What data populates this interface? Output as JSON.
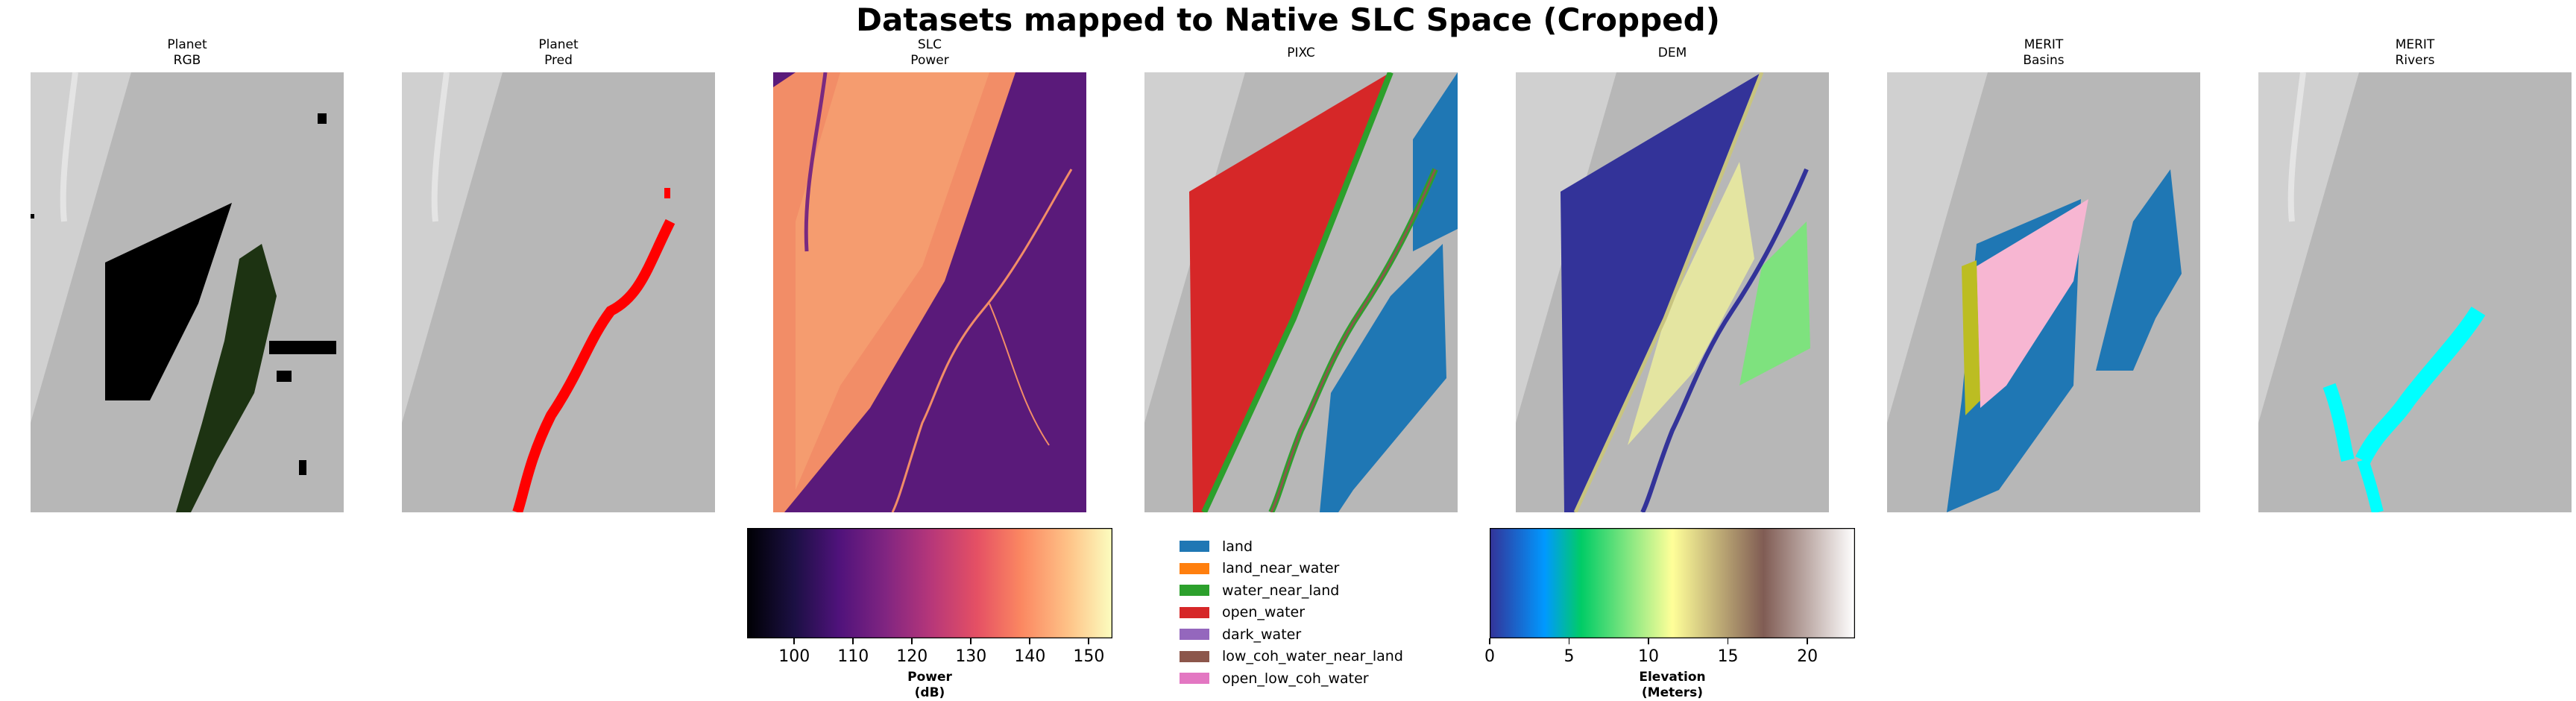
{
  "title": "Datasets mapped to Native SLC Space (Cropped)",
  "panels": [
    {
      "id": "planet-rgb",
      "line1": "Planet",
      "line2": "RGB"
    },
    {
      "id": "planet-pred",
      "line1": "Planet",
      "line2": "Pred"
    },
    {
      "id": "slc-power",
      "line1": "SLC",
      "line2": "Power"
    },
    {
      "id": "pixc",
      "line1": "PIXC",
      "line2": ""
    },
    {
      "id": "dem",
      "line1": "DEM",
      "line2": ""
    },
    {
      "id": "merit-basins",
      "line1": "MERIT",
      "line2": "Basins"
    },
    {
      "id": "merit-rivers",
      "line1": "MERIT",
      "line2": "Rivers"
    }
  ],
  "colors": {
    "background_gray": "#b9b9b9",
    "land": "#1f77b4",
    "land_near_water": "#ff7f0e",
    "water_near_land": "#2ca02c",
    "open_water": "#d62728",
    "dark_water": "#9467bd",
    "low_coh_water_near_land": "#8c564b",
    "open_low_coh_water": "#e377c2",
    "pred_red": "#ff0000",
    "rivers_cyan": "#00ffff",
    "basin_pink": "#f7b6d2",
    "basin_olive": "#bcbd22",
    "dem_navy": "#333399"
  },
  "chart_data": [
    {
      "type": "colorbar",
      "name": "power-colorbar",
      "colormap": "magma",
      "range": [
        92,
        154
      ],
      "ticks": [
        100,
        110,
        120,
        130,
        140,
        150
      ],
      "label_line1": "Power",
      "label_line2": "(dB)"
    },
    {
      "type": "colorbar",
      "name": "elevation-colorbar",
      "colormap": "terrain",
      "range": [
        0,
        23
      ],
      "ticks": [
        0,
        5,
        10,
        15,
        20
      ],
      "label_line1": "Elevation",
      "label_line2": "(Meters)"
    },
    {
      "type": "legend",
      "name": "pixc-classes",
      "entries": [
        {
          "label": "land",
          "color": "#1f77b4"
        },
        {
          "label": "land_near_water",
          "color": "#ff7f0e"
        },
        {
          "label": "water_near_land",
          "color": "#2ca02c"
        },
        {
          "label": "open_water",
          "color": "#d62728"
        },
        {
          "label": "dark_water",
          "color": "#9467bd"
        },
        {
          "label": "low_coh_water_near_land",
          "color": "#8c564b"
        },
        {
          "label": "open_low_coh_water",
          "color": "#e377c2"
        }
      ]
    }
  ]
}
